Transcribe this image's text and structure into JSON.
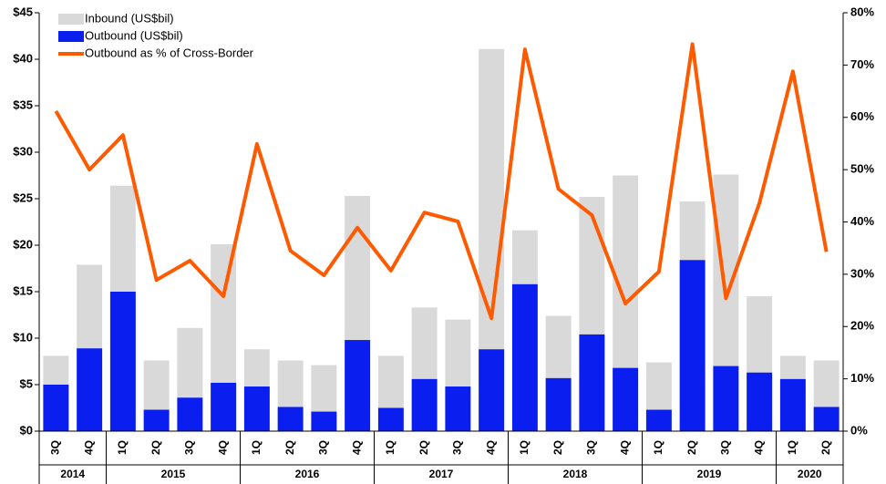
{
  "chart_data": {
    "type": "bar-line",
    "categories": [
      "3Q",
      "4Q",
      "1Q",
      "2Q",
      "3Q",
      "4Q",
      "1Q",
      "2Q",
      "3Q",
      "4Q",
      "1Q",
      "2Q",
      "3Q",
      "4Q",
      "1Q",
      "2Q",
      "3Q",
      "4Q",
      "1Q",
      "2Q",
      "3Q",
      "4Q",
      "1Q",
      "2Q"
    ],
    "year_groups": [
      {
        "label": "2014",
        "count": 2
      },
      {
        "label": "2015",
        "count": 4
      },
      {
        "label": "2016",
        "count": 4
      },
      {
        "label": "2017",
        "count": 4
      },
      {
        "label": "2018",
        "count": 4
      },
      {
        "label": "2019",
        "count": 4
      },
      {
        "label": "2020",
        "count": 2
      }
    ],
    "series": [
      {
        "name": "Inbound (US$bil)",
        "color": "#d9d9d9",
        "kind": "bar",
        "values": [
          8.1,
          17.9,
          26.4,
          7.6,
          11.1,
          20.1,
          8.8,
          7.6,
          7.1,
          25.3,
          8.1,
          13.3,
          12.0,
          41.1,
          21.6,
          12.4,
          25.2,
          27.5,
          7.4,
          24.7,
          27.6,
          14.5,
          8.1,
          7.6
        ]
      },
      {
        "name": "Outbound (US$bil)",
        "color": "#0a1ef0",
        "kind": "bar",
        "values": [
          5.0,
          8.9,
          15.0,
          2.3,
          3.6,
          5.2,
          4.8,
          2.6,
          2.1,
          9.8,
          2.5,
          5.6,
          4.8,
          8.8,
          15.8,
          5.7,
          10.4,
          6.8,
          2.3,
          18.4,
          7.0,
          6.3,
          5.6,
          2.6
        ]
      },
      {
        "name": "Outbound as % of Cross-Border",
        "color": "#ff5a00",
        "kind": "line",
        "axis": "y2",
        "values": [
          61.2,
          50.0,
          56.6,
          28.9,
          32.6,
          25.8,
          54.9,
          34.5,
          29.8,
          38.9,
          30.7,
          41.8,
          40.1,
          21.6,
          73.0,
          46.3,
          41.3,
          24.4,
          30.5,
          74.0,
          25.4,
          43.6,
          68.8,
          34.3
        ]
      }
    ],
    "ylim": [
      0,
      45
    ],
    "yticks": [
      {
        "value": 0,
        "label": "$0"
      },
      {
        "value": 5,
        "label": "$5"
      },
      {
        "value": 10,
        "label": "$10"
      },
      {
        "value": 15,
        "label": "$15"
      },
      {
        "value": 20,
        "label": "$20"
      },
      {
        "value": 25,
        "label": "$25"
      },
      {
        "value": 30,
        "label": "$30"
      },
      {
        "value": 35,
        "label": "$35"
      },
      {
        "value": 40,
        "label": "$40"
      },
      {
        "value": 45,
        "label": "$45"
      }
    ],
    "y2lim": [
      0,
      80
    ],
    "y2ticks": [
      {
        "value": 0,
        "label": "0%"
      },
      {
        "value": 10,
        "label": "10%"
      },
      {
        "value": 20,
        "label": "20%"
      },
      {
        "value": 30,
        "label": "30%"
      },
      {
        "value": 40,
        "label": "40%"
      },
      {
        "value": 50,
        "label": "50%"
      },
      {
        "value": 60,
        "label": "60%"
      },
      {
        "value": 70,
        "label": "70%"
      },
      {
        "value": 80,
        "label": "80%"
      }
    ]
  }
}
